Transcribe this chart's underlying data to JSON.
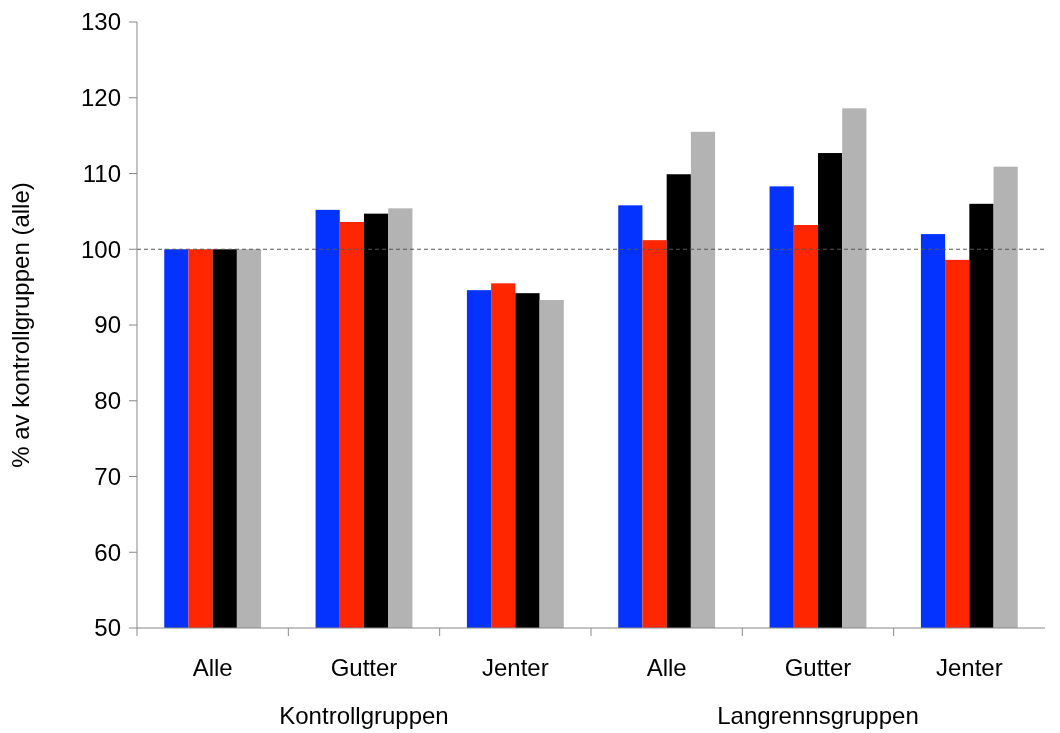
{
  "chart_data": {
    "type": "bar",
    "ylabel": "% av kontrollgruppen (alle)",
    "categories": [
      "Alle",
      "Gutter",
      "Jenter",
      "Alle",
      "Gutter",
      "Jenter"
    ],
    "series": [
      {
        "color": "#0433ff",
        "values": [
          100,
          105.2,
          94.6,
          105.8,
          108.3,
          102.0
        ]
      },
      {
        "color": "#ff2600",
        "values": [
          100,
          103.6,
          95.5,
          101.2,
          103.2,
          98.6
        ]
      },
      {
        "color": "#000000",
        "values": [
          100,
          104.7,
          94.2,
          109.9,
          112.7,
          106.0
        ]
      },
      {
        "color": "#b3b3b3",
        "values": [
          100,
          105.4,
          93.3,
          115.5,
          118.6,
          110.9
        ]
      }
    ],
    "ylim": [
      50,
      130
    ],
    "yticks": [
      50,
      60,
      70,
      80,
      90,
      100,
      110,
      120,
      130
    ],
    "grid": false,
    "ref_lines": [
      {
        "axis": "y",
        "value": 100,
        "color": "#555555",
        "line_style": "dashed"
      }
    ],
    "annotations": [
      "Kontrollgruppen",
      "Langrennsgruppen"
    ]
  }
}
